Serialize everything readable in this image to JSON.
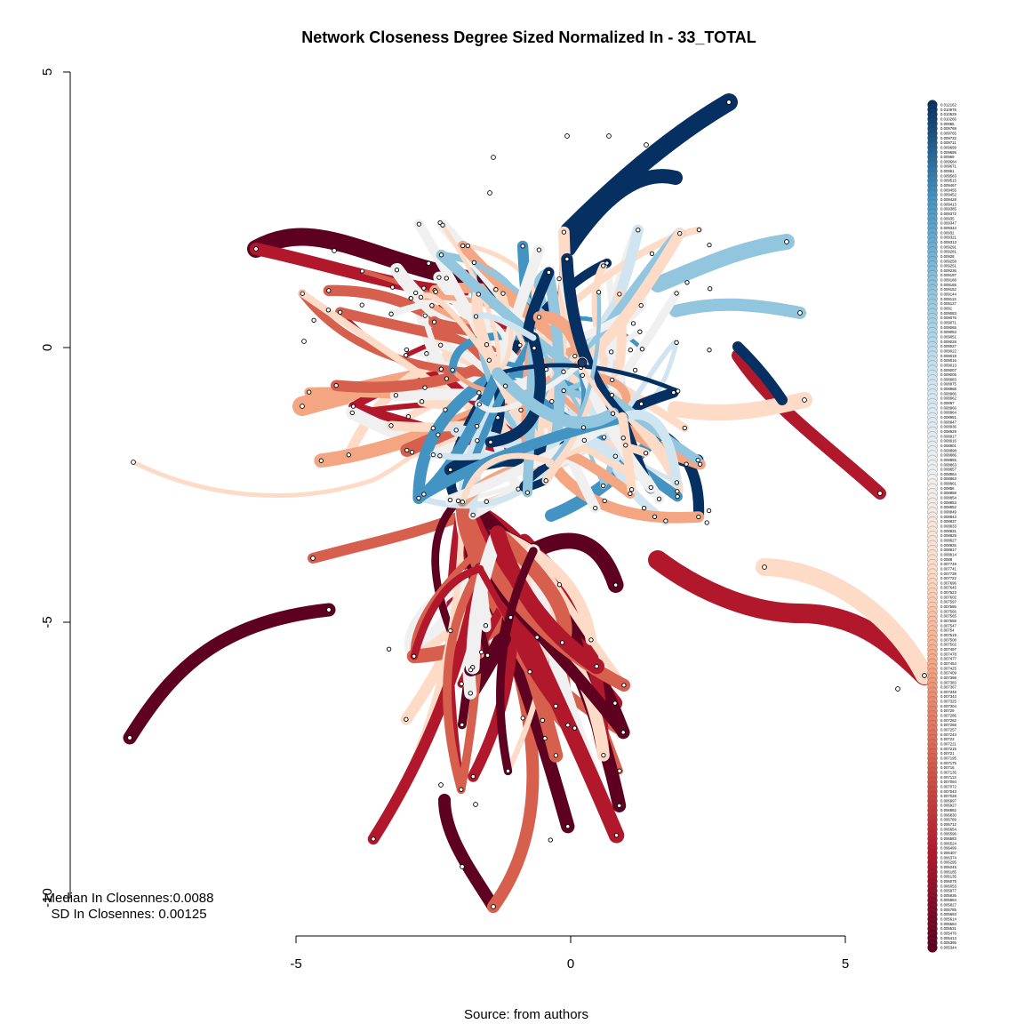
{
  "title": "Network Closeness Degree Sized Normalized In - 33_TOTAL",
  "source": "Source: from authors",
  "stats": {
    "median": "Median In Closennes:0.0088",
    "sd": "SD In Closennes: 0.00125"
  },
  "axes": {
    "xlim": [
      -5,
      5
    ],
    "ylim": [
      -10,
      5
    ],
    "x_ticks": [
      "-5",
      "0",
      "5"
    ],
    "y_ticks": [
      "5",
      "0",
      "-5",
      "-10"
    ]
  },
  "colors": {
    "low": "#5e0020",
    "mid_low": "#b2182b",
    "mid": "#d6604d",
    "peach": "#f4a582",
    "light_peach": "#fddbc7",
    "neutral": "#f0f0f0",
    "light_blue": "#d1e5f0",
    "blue": "#92c5de",
    "mid_blue": "#4393c3",
    "dark_blue": "#053061"
  },
  "legend_labels": [
    "0.012162",
    "0.010976",
    "0.010629",
    "0.010266",
    "0.00985",
    "0.009769",
    "0.009765",
    "0.009732",
    "0.009711",
    "0.009699",
    "0.009695",
    "0.00969",
    "0.009684",
    "0.009671",
    "0.00961",
    "0.009583",
    "0.009515",
    "0.009467",
    "0.009455",
    "0.009452",
    "0.009428",
    "0.009413",
    "0.009385",
    "0.009372",
    "0.00935",
    "0.009347",
    "0.009343",
    "0.00932",
    "0.009321",
    "0.009313",
    "0.009291",
    "0.009281",
    "0.00928",
    "0.009258",
    "0.009251",
    "0.009236",
    "0.009197",
    "0.009188",
    "0.009165",
    "0.009152",
    "0.009144",
    "0.009113",
    "0.009127",
    "0.0091",
    "0.009083",
    "0.009076",
    "0.009071",
    "0.009065",
    "0.009053",
    "0.009051",
    "0.009028",
    "0.009027",
    "0.009022",
    "0.009019",
    "0.009016",
    "0.009013",
    "0.009007",
    "0.009005",
    "0.008983",
    "0.008975",
    "0.008968",
    "0.008966",
    "0.008962",
    "0.00897",
    "0.008966",
    "0.008964",
    "0.008951",
    "0.008947",
    "0.008936",
    "0.008929",
    "0.008917",
    "0.008916",
    "0.008901",
    "0.008898",
    "0.008886",
    "0.008865",
    "0.008863",
    "0.008857",
    "0.008864",
    "0.008863",
    "0.008861",
    "0.00886",
    "0.008858",
    "0.008854",
    "0.008853",
    "0.008852",
    "0.008849",
    "0.008843",
    "0.008837",
    "0.008833",
    "0.008831",
    "0.008829",
    "0.008827",
    "0.008826",
    "0.008817",
    "0.008814",
    "0.0088",
    "0.007749",
    "0.007741",
    "0.007739",
    "0.007722",
    "0.007696",
    "0.007645",
    "0.007623",
    "0.007602",
    "0.007597",
    "0.007586",
    "0.007566",
    "0.007565",
    "0.007559",
    "0.007547",
    "0.00754",
    "0.007519",
    "0.007508",
    "0.007502",
    "0.007497",
    "0.007478",
    "0.007477",
    "0.007454",
    "0.007425",
    "0.007409",
    "0.007398",
    "0.007383",
    "0.007367",
    "0.007348",
    "0.007343",
    "0.007325",
    "0.007304",
    "0.00729",
    "0.007286",
    "0.007282",
    "0.007268",
    "0.007257",
    "0.007243",
    "0.00723",
    "0.007221",
    "0.007215",
    "0.00721",
    "0.007195",
    "0.007175",
    "0.00716",
    "0.007135",
    "0.007113",
    "0.007094",
    "0.007072",
    "0.007043",
    "0.007028",
    "0.006997",
    "0.006927",
    "0.006882",
    "0.006830",
    "0.006789",
    "0.006712",
    "0.006654",
    "0.006596",
    "0.006583",
    "0.006524",
    "0.006499",
    "0.006407",
    "0.006374",
    "0.006295",
    "0.006245",
    "0.006185",
    "0.006135",
    "0.006075",
    "0.006053",
    "0.005977",
    "0.005936",
    "0.005884",
    "0.005827",
    "0.005785",
    "0.005693",
    "0.005614",
    "0.005584",
    "0.005531",
    "0.005476",
    "0.005413",
    "0.005395",
    "0.005344"
  ]
}
